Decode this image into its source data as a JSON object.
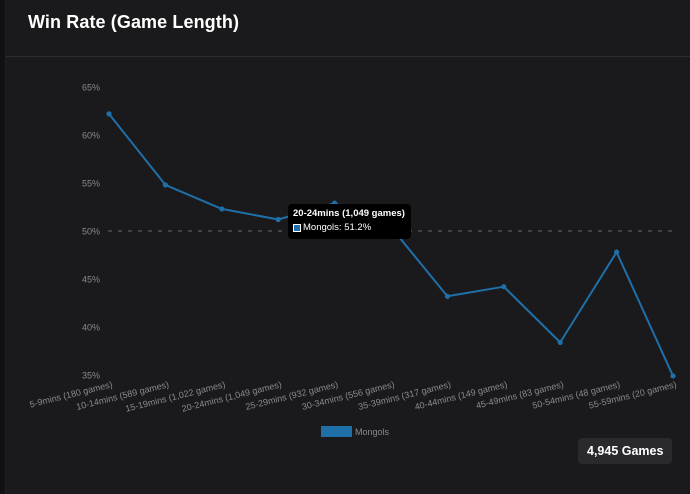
{
  "header": {
    "title": "Win Rate (Game Length)"
  },
  "badge": {
    "total_games": "4,945 Games"
  },
  "tooltip": {
    "title": "20-24mins (1,049 games)",
    "series": "Mongols",
    "value": "51.2%"
  },
  "colors": {
    "series": "#1f6fa8",
    "reference_line": "#6a6a6e",
    "tick_text": "#8a8a8e",
    "background": "#1a1a1c"
  },
  "chart_data": {
    "type": "line",
    "categories": [
      "5-9mins (180 games)",
      "10-14mins (589 games)",
      "15-19mins (1,022 games)",
      "20-24mins (1,049 games)",
      "25-29mins (932 games)",
      "30-34mins (556 games)",
      "35-39mins (317 games)",
      "40-44mins (149 games)",
      "45-49mins (83 games)",
      "50-54mins (48 games)",
      "55-59mins (20 games)"
    ],
    "series": [
      {
        "name": "Mongols",
        "values": [
          62.2,
          54.8,
          52.3,
          51.2,
          52.9,
          50.4,
          43.2,
          44.2,
          38.4,
          47.8,
          34.9
        ]
      }
    ],
    "ylim": [
      35,
      65
    ],
    "yticks": [
      35,
      40,
      45,
      50,
      55,
      60,
      65
    ],
    "ytick_labels": [
      "35%",
      "40%",
      "45%",
      "50%",
      "55%",
      "60%",
      "65%"
    ],
    "reference_line": 50,
    "grid": false,
    "legend": "bottom"
  }
}
